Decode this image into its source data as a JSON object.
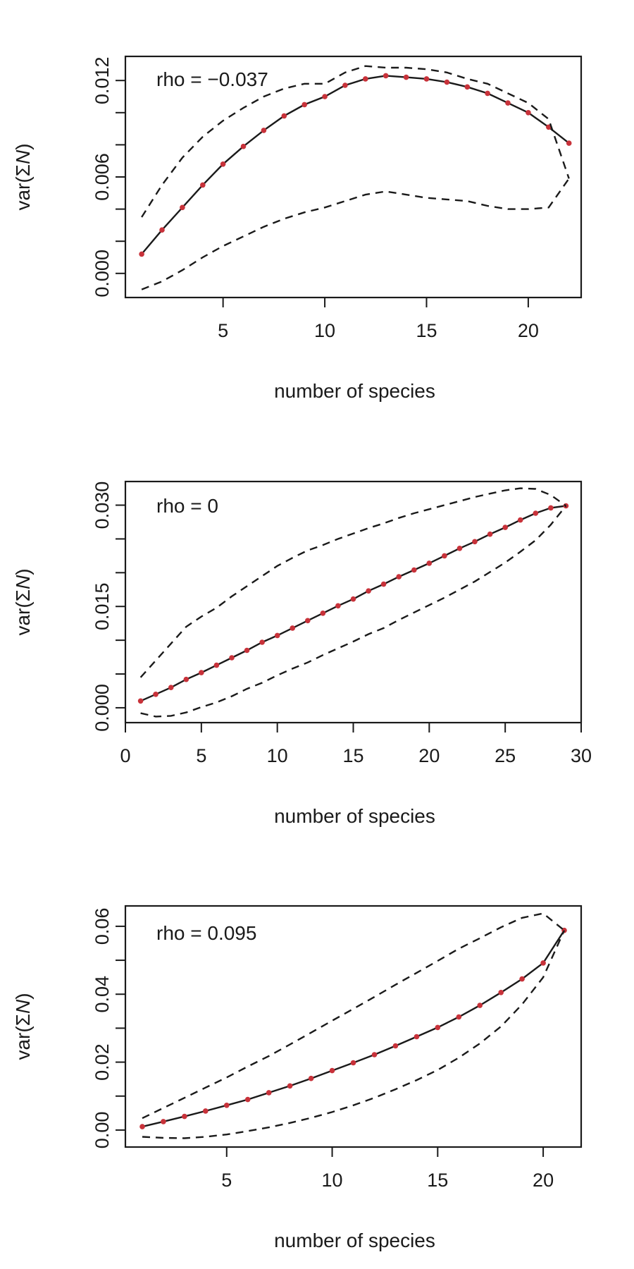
{
  "chart_data": [
    {
      "type": "line",
      "annotation": "rho = −0.037",
      "xlabel": "number of species",
      "ylabel_pre": "var(Σ",
      "ylabel_italic": "N",
      "ylabel_post": ")",
      "xlim": [
        0.2,
        22.6
      ],
      "ylim": [
        -0.0015,
        0.0135
      ],
      "xticks": [
        5,
        10,
        15,
        20
      ],
      "xtick_labels": [
        "5",
        "10",
        "15",
        "20"
      ],
      "yticks": [
        0.0,
        0.002,
        0.004,
        0.006,
        0.008,
        0.01,
        0.012
      ],
      "ytick_labels": [
        "0.000",
        "",
        "",
        "0.006",
        "",
        "",
        "0.012"
      ],
      "grid": false,
      "series": [
        {
          "style": "solid-with-points",
          "color": "#c8323a",
          "x": [
            1,
            2,
            3,
            4,
            5,
            6,
            7,
            8,
            9,
            10,
            11,
            12,
            13,
            14,
            15,
            16,
            17,
            18,
            19,
            20,
            21,
            22
          ],
          "y": [
            0.0012,
            0.0027,
            0.0041,
            0.0055,
            0.0068,
            0.0079,
            0.0089,
            0.0098,
            0.0105,
            0.011,
            0.0117,
            0.0121,
            0.0123,
            0.0122,
            0.0121,
            0.0119,
            0.0116,
            0.0112,
            0.0106,
            0.01,
            0.0091,
            0.0081
          ]
        },
        {
          "style": "dashed",
          "x": [
            1,
            2,
            3,
            4,
            5,
            6,
            7,
            8,
            9,
            10,
            11,
            12,
            13,
            14,
            15,
            16,
            17,
            18,
            19,
            20,
            21,
            22
          ],
          "y": [
            0.0035,
            0.0055,
            0.0072,
            0.0085,
            0.0095,
            0.0103,
            0.011,
            0.0115,
            0.0118,
            0.0118,
            0.0125,
            0.0129,
            0.0128,
            0.0128,
            0.0127,
            0.0125,
            0.0121,
            0.0118,
            0.0112,
            0.0106,
            0.0096,
            0.0059
          ]
        },
        {
          "style": "dashed",
          "x": [
            1,
            2,
            3,
            4,
            5,
            6,
            7,
            8,
            9,
            10,
            11,
            12,
            13,
            14,
            15,
            16,
            17,
            18,
            19,
            20,
            21,
            22
          ],
          "y": [
            -0.001,
            -0.0005,
            0.0002,
            0.001,
            0.0017,
            0.0023,
            0.0029,
            0.0034,
            0.0038,
            0.0041,
            0.0045,
            0.0049,
            0.0051,
            0.0049,
            0.0047,
            0.0046,
            0.0045,
            0.0042,
            0.004,
            0.004,
            0.0041,
            0.0059
          ]
        }
      ]
    },
    {
      "type": "line",
      "annotation": "rho = 0",
      "xlabel": "number of species",
      "ylabel_pre": "var(Σ",
      "ylabel_italic": "N",
      "ylabel_post": ")",
      "xlim": [
        0,
        30
      ],
      "ylim": [
        -0.0022,
        0.0335
      ],
      "xticks": [
        0,
        5,
        10,
        15,
        20,
        25,
        30
      ],
      "xtick_labels": [
        "0",
        "5",
        "10",
        "15",
        "20",
        "25",
        "30"
      ],
      "yticks": [
        0.0,
        0.005,
        0.01,
        0.015,
        0.02,
        0.025,
        0.03
      ],
      "ytick_labels": [
        "0.000",
        "",
        "",
        "0.015",
        "",
        "",
        "0.030"
      ],
      "grid": false,
      "series": [
        {
          "style": "solid-with-points",
          "color": "#c8323a",
          "x": [
            1,
            2,
            3,
            4,
            5,
            6,
            7,
            8,
            9,
            10,
            11,
            12,
            13,
            14,
            15,
            16,
            17,
            18,
            19,
            20,
            21,
            22,
            23,
            24,
            25,
            26,
            27,
            28,
            29
          ],
          "y": [
            0.001,
            0.002,
            0.003,
            0.0042,
            0.0052,
            0.0063,
            0.0074,
            0.0085,
            0.0097,
            0.0107,
            0.0118,
            0.0129,
            0.014,
            0.0151,
            0.0161,
            0.0173,
            0.0183,
            0.0194,
            0.0204,
            0.0214,
            0.0225,
            0.0236,
            0.0246,
            0.0257,
            0.0267,
            0.0278,
            0.0288,
            0.0296,
            0.0299
          ]
        },
        {
          "style": "dashed",
          "x": [
            1,
            2,
            3,
            4,
            5,
            6,
            7,
            8,
            9,
            10,
            11,
            12,
            13,
            14,
            15,
            16,
            17,
            18,
            19,
            20,
            21,
            22,
            23,
            24,
            25,
            26,
            27,
            28,
            29
          ],
          "y": [
            0.0045,
            0.007,
            0.0095,
            0.012,
            0.0135,
            0.0148,
            0.0165,
            0.018,
            0.0195,
            0.021,
            0.0222,
            0.0233,
            0.0241,
            0.025,
            0.0258,
            0.0266,
            0.0273,
            0.0281,
            0.0288,
            0.0294,
            0.03,
            0.0306,
            0.0312,
            0.0317,
            0.0322,
            0.0325,
            0.0324,
            0.0315,
            0.0299
          ]
        },
        {
          "style": "dashed",
          "x": [
            1,
            2,
            3,
            4,
            5,
            6,
            7,
            8,
            9,
            10,
            11,
            12,
            13,
            14,
            15,
            16,
            17,
            18,
            19,
            20,
            21,
            22,
            23,
            24,
            25,
            26,
            27,
            28,
            29
          ],
          "y": [
            -0.0008,
            -0.0013,
            -0.0012,
            -0.0007,
            0.0001,
            0.0008,
            0.0017,
            0.0028,
            0.0037,
            0.0048,
            0.0058,
            0.0067,
            0.0078,
            0.0088,
            0.0098,
            0.0109,
            0.0118,
            0.013,
            0.0141,
            0.0152,
            0.0163,
            0.0175,
            0.0187,
            0.0201,
            0.0215,
            0.0231,
            0.0248,
            0.0271,
            0.0299
          ]
        }
      ]
    },
    {
      "type": "line",
      "annotation": "rho = 0.095",
      "xlabel": "number of species",
      "ylabel_pre": "var(Σ",
      "ylabel_italic": "N",
      "ylabel_post": ")",
      "xlim": [
        0.2,
        21.8
      ],
      "ylim": [
        -0.005,
        0.066
      ],
      "xticks": [
        5,
        10,
        15,
        20
      ],
      "xtick_labels": [
        "5",
        "10",
        "15",
        "20"
      ],
      "yticks": [
        0.0,
        0.01,
        0.02,
        0.03,
        0.04,
        0.05,
        0.06
      ],
      "ytick_labels": [
        "0.00",
        "",
        "0.02",
        "",
        "0.04",
        "",
        "0.06"
      ],
      "grid": false,
      "series": [
        {
          "style": "solid-with-points",
          "color": "#c8323a",
          "x": [
            1,
            2,
            3,
            4,
            5,
            6,
            7,
            8,
            9,
            10,
            11,
            12,
            13,
            14,
            15,
            16,
            17,
            18,
            19,
            20,
            21
          ],
          "y": [
            0.001,
            0.0025,
            0.004,
            0.0056,
            0.0073,
            0.009,
            0.011,
            0.013,
            0.0152,
            0.0175,
            0.0198,
            0.0222,
            0.0248,
            0.0275,
            0.0302,
            0.0333,
            0.0367,
            0.0405,
            0.0445,
            0.0492,
            0.0588
          ]
        },
        {
          "style": "dashed",
          "x": [
            1,
            2,
            3,
            4,
            5,
            6,
            7,
            8,
            9,
            10,
            11,
            12,
            13,
            14,
            15,
            16,
            17,
            18,
            19,
            20,
            21
          ],
          "y": [
            0.0035,
            0.0065,
            0.0095,
            0.0125,
            0.0155,
            0.0187,
            0.0218,
            0.0252,
            0.0287,
            0.0322,
            0.0357,
            0.0392,
            0.0428,
            0.0463,
            0.0498,
            0.0534,
            0.0565,
            0.0597,
            0.0625,
            0.0638,
            0.0588
          ]
        },
        {
          "style": "dashed",
          "x": [
            1,
            2,
            3,
            4,
            5,
            6,
            7,
            8,
            9,
            10,
            11,
            12,
            13,
            14,
            15,
            16,
            17,
            18,
            19,
            20,
            21
          ],
          "y": [
            -0.002,
            -0.0023,
            -0.0024,
            -0.002,
            -0.0013,
            -0.0003,
            0.0008,
            0.0021,
            0.0036,
            0.0053,
            0.0073,
            0.0095,
            0.012,
            0.0147,
            0.0177,
            0.0213,
            0.0255,
            0.0305,
            0.037,
            0.045,
            0.0588
          ]
        }
      ]
    }
  ]
}
